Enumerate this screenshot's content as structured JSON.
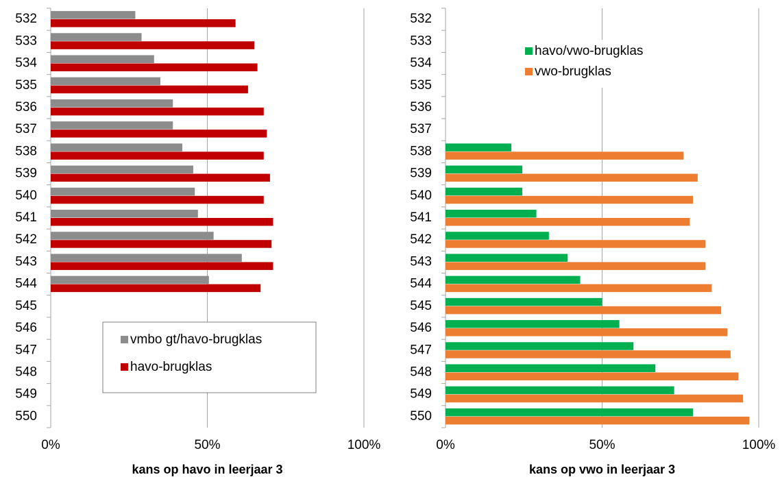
{
  "chart_data": [
    {
      "type": "bar",
      "orientation": "horizontal",
      "xlabel": "kans op havo in leerjaar 3",
      "categories": [
        "532",
        "533",
        "534",
        "535",
        "536",
        "537",
        "538",
        "539",
        "540",
        "541",
        "542",
        "543",
        "544",
        "545",
        "546",
        "547",
        "548",
        "549",
        "550"
      ],
      "series": [
        {
          "name": "vmbo gt/havo-brugklas",
          "color": "#8c8c8c",
          "values": [
            27,
            29,
            33,
            35,
            39,
            39,
            42,
            45.5,
            46,
            47,
            52,
            61,
            50.5,
            null,
            null,
            null,
            null,
            null,
            null
          ]
        },
        {
          "name": "havo-brugklas",
          "color": "#c00000",
          "values": [
            59,
            65,
            66,
            63,
            68,
            69,
            68,
            70,
            68,
            71,
            70.5,
            71,
            67,
            null,
            null,
            null,
            null,
            null,
            null
          ]
        }
      ],
      "xlim": [
        0,
        100
      ],
      "xticks": [
        {
          "value": 0,
          "label": "0%"
        },
        {
          "value": 50,
          "label": "50%"
        },
        {
          "value": 100,
          "label": "100%"
        }
      ],
      "grid": true,
      "legend": "lower-center",
      "legend_frame": true
    },
    {
      "type": "bar",
      "orientation": "horizontal",
      "xlabel": "kans op vwo in leerjaar 3",
      "categories": [
        "532",
        "533",
        "534",
        "535",
        "536",
        "537",
        "538",
        "539",
        "540",
        "541",
        "542",
        "543",
        "544",
        "545",
        "546",
        "547",
        "548",
        "549",
        "550"
      ],
      "series": [
        {
          "name": "havo/vwo-brugklas",
          "color": "#00b050",
          "values": [
            null,
            null,
            null,
            null,
            null,
            null,
            21,
            24.5,
            24.5,
            29,
            33,
            39,
            43,
            50,
            55.5,
            60,
            67,
            73,
            79
          ]
        },
        {
          "name": "vwo-brugklas",
          "color": "#ed7d31",
          "values": [
            null,
            null,
            null,
            null,
            null,
            null,
            76,
            80.5,
            79,
            78,
            83,
            83,
            85,
            88,
            90,
            91,
            93.5,
            95,
            97
          ]
        }
      ],
      "xlim": [
        0,
        100
      ],
      "xticks": [
        {
          "value": 0,
          "label": "0%"
        },
        {
          "value": 50,
          "label": "50%"
        },
        {
          "value": 100,
          "label": "100%"
        }
      ],
      "grid": true,
      "legend": "upper-left",
      "legend_frame": false
    }
  ]
}
